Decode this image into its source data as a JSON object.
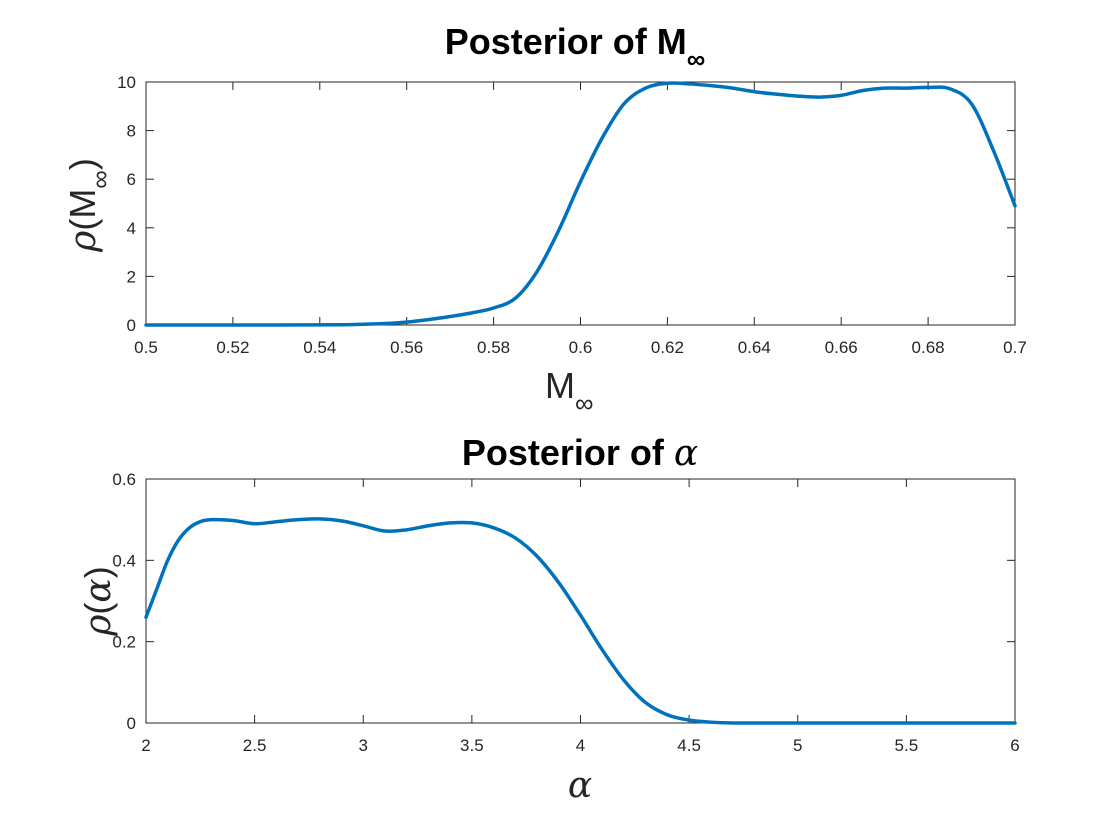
{
  "colors": {
    "line": "#0072BD",
    "axis": "#262626"
  },
  "chart_data": [
    {
      "type": "line",
      "title_main": "Posterior of M",
      "title_sub": "∞",
      "xlabel_main": "M",
      "xlabel_sub": "∞",
      "ylabel_pre": "ρ",
      "ylabel_mid": "(M",
      "ylabel_sub": "∞",
      "ylabel_post": ")",
      "xlim": [
        0.5,
        0.7
      ],
      "ylim": [
        0,
        10
      ],
      "xticks": [
        0.5,
        0.52,
        0.54,
        0.56,
        0.58,
        0.6,
        0.62,
        0.64,
        0.66,
        0.68,
        0.7
      ],
      "xtick_labels": [
        "0.5",
        "0.52",
        "0.54",
        "0.56",
        "0.58",
        "0.6",
        "0.62",
        "0.64",
        "0.66",
        "0.68",
        "0.7"
      ],
      "yticks": [
        0,
        2,
        4,
        6,
        8,
        10
      ],
      "ytick_labels": [
        "0",
        "2",
        "4",
        "6",
        "8",
        "10"
      ],
      "grid": false,
      "series": [
        {
          "x": [
            0.5,
            0.53,
            0.545,
            0.55,
            0.555,
            0.56,
            0.565,
            0.57,
            0.575,
            0.58,
            0.585,
            0.59,
            0.595,
            0.6,
            0.605,
            0.61,
            0.615,
            0.62,
            0.625,
            0.63,
            0.635,
            0.64,
            0.645,
            0.65,
            0.655,
            0.66,
            0.665,
            0.67,
            0.675,
            0.68,
            0.685,
            0.69,
            0.695,
            0.7
          ],
          "y": [
            0.0,
            0.0,
            0.01,
            0.03,
            0.06,
            0.12,
            0.22,
            0.35,
            0.5,
            0.7,
            1.1,
            2.2,
            3.9,
            5.9,
            7.7,
            9.1,
            9.75,
            9.95,
            9.92,
            9.85,
            9.75,
            9.6,
            9.5,
            9.42,
            9.38,
            9.45,
            9.65,
            9.75,
            9.75,
            9.78,
            9.72,
            9.1,
            7.2,
            4.9
          ]
        }
      ]
    },
    {
      "type": "line",
      "title_main": "Posterior of ",
      "title_greek": "α",
      "xlabel": "α",
      "ylabel_pre": "ρ",
      "ylabel_mid": "(",
      "ylabel_greek": "α",
      "ylabel_post": ")",
      "xlim": [
        2,
        6
      ],
      "ylim": [
        0,
        0.6
      ],
      "xticks": [
        2,
        2.5,
        3,
        3.5,
        4,
        4.5,
        5,
        5.5,
        6
      ],
      "xtick_labels": [
        "2",
        "2.5",
        "3",
        "3.5",
        "4",
        "4.5",
        "5",
        "5.5",
        "6"
      ],
      "yticks": [
        0,
        0.2,
        0.4,
        0.6
      ],
      "ytick_labels": [
        "0",
        "0.2",
        "0.4",
        "0.6"
      ],
      "grid": false,
      "series": [
        {
          "x": [
            2.0,
            2.05,
            2.1,
            2.15,
            2.2,
            2.25,
            2.3,
            2.4,
            2.5,
            2.6,
            2.7,
            2.8,
            2.9,
            3.0,
            3.1,
            3.2,
            3.3,
            3.4,
            3.5,
            3.6,
            3.7,
            3.8,
            3.9,
            4.0,
            4.1,
            4.2,
            4.3,
            4.4,
            4.5,
            4.6,
            4.7,
            4.8,
            5.0,
            5.5,
            6.0
          ],
          "y": [
            0.26,
            0.33,
            0.4,
            0.45,
            0.48,
            0.495,
            0.5,
            0.498,
            0.49,
            0.495,
            0.5,
            0.502,
            0.497,
            0.485,
            0.472,
            0.475,
            0.485,
            0.492,
            0.492,
            0.48,
            0.455,
            0.41,
            0.345,
            0.265,
            0.18,
            0.105,
            0.05,
            0.02,
            0.007,
            0.002,
            0.0,
            0.0,
            0.0,
            0.0,
            0.0
          ]
        }
      ]
    }
  ]
}
